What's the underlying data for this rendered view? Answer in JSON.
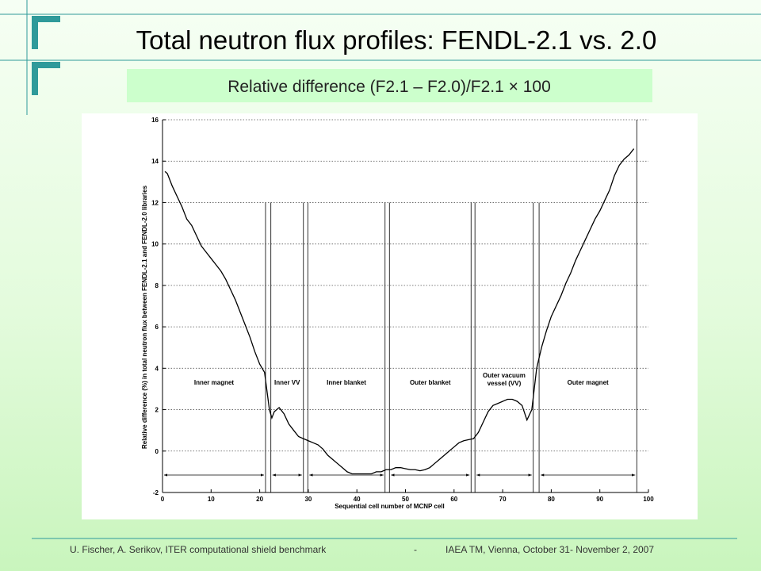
{
  "title": "Total neutron flux profiles: FENDL-2.1 vs. 2.0",
  "subtitle": "Relative difference (F2.1 – F2.0)/F2.1 × 100",
  "footer": [
    "U. Fischer, A. Serikov, ITER computational shield benchmark",
    "-",
    "IAEA TM, Vienna, October 31- November 2, 2007"
  ],
  "chart_data": {
    "type": "line",
    "x_label": "Sequential cell number of MCNP cell",
    "y_label": "Relative difference (%) in total neutron flux between FENDL-2.1 and FENDL-2.0 libraries",
    "color": "#000000",
    "x": [
      0.5,
      1,
      2,
      3,
      4,
      5,
      6,
      7,
      8,
      9,
      10,
      11,
      12,
      13,
      14,
      15,
      16,
      17,
      18,
      19,
      20,
      21,
      22,
      22.5,
      23,
      24,
      25,
      26,
      27,
      28,
      29,
      30,
      31,
      32,
      33,
      34,
      35,
      36,
      37,
      38,
      39,
      40,
      41,
      42,
      43,
      44,
      45,
      46,
      47,
      48,
      49,
      50,
      51,
      52,
      53,
      54,
      55,
      56,
      57,
      58,
      59,
      60,
      61,
      62,
      63,
      64,
      65,
      66,
      67,
      68,
      69,
      70,
      71,
      72,
      73,
      74,
      75,
      76,
      77,
      78,
      79,
      80,
      81,
      82,
      83,
      84,
      85,
      86,
      87,
      88,
      89,
      90,
      91,
      92,
      93,
      94,
      95,
      96,
      97
    ],
    "values": [
      13.5,
      13.4,
      12.8,
      12.3,
      11.8,
      11.2,
      10.9,
      10.4,
      9.9,
      9.6,
      9.3,
      9.0,
      8.7,
      8.3,
      7.8,
      7.3,
      6.7,
      6.1,
      5.5,
      4.8,
      4.2,
      3.8,
      2.0,
      1.6,
      1.9,
      2.1,
      1.8,
      1.3,
      1.0,
      0.7,
      0.6,
      0.5,
      0.4,
      0.3,
      0.1,
      -0.2,
      -0.4,
      -0.6,
      -0.8,
      -1.0,
      -1.1,
      -1.1,
      -1.1,
      -1.1,
      -1.1,
      -1.0,
      -1.0,
      -0.9,
      -0.9,
      -0.8,
      -0.8,
      -0.85,
      -0.9,
      -0.9,
      -0.95,
      -0.9,
      -0.8,
      -0.6,
      -0.4,
      -0.2,
      0.0,
      0.2,
      0.4,
      0.5,
      0.55,
      0.6,
      0.9,
      1.4,
      1.9,
      2.2,
      2.3,
      2.4,
      2.5,
      2.5,
      2.4,
      2.2,
      1.5,
      2.0,
      4.0,
      5.0,
      5.8,
      6.5,
      7.0,
      7.5,
      8.1,
      8.6,
      9.2,
      9.7,
      10.2,
      10.7,
      11.2,
      11.6,
      12.1,
      12.6,
      13.3,
      13.8,
      14.1,
      14.3,
      14.6
    ],
    "xlim": [
      0,
      100
    ],
    "ylim": [
      -2,
      16
    ],
    "xticks": [
      0,
      10,
      20,
      30,
      40,
      50,
      60,
      70,
      80,
      90,
      100
    ],
    "yticks": [
      -2,
      0,
      2,
      4,
      6,
      8,
      10,
      12,
      14,
      16
    ],
    "grid": true,
    "regions": [
      {
        "label": [
          "Inner magnet"
        ],
        "x": [
          0,
          21.2
        ]
      },
      {
        "label": [
          "Inner VV"
        ],
        "x": [
          22.3,
          29.0
        ]
      },
      {
        "label": [
          "Inner blanket"
        ],
        "x": [
          29.9,
          45.8
        ]
      },
      {
        "label": [
          "Outer blanket"
        ],
        "x": [
          46.7,
          63.5
        ]
      },
      {
        "label": [
          "Outer vacuum",
          "vessel (VV)"
        ],
        "x": [
          64.3,
          76.3
        ]
      },
      {
        "label": [
          "Outer magnet"
        ],
        "x": [
          77.5,
          97.6
        ]
      }
    ],
    "boundary_top": 12
  }
}
